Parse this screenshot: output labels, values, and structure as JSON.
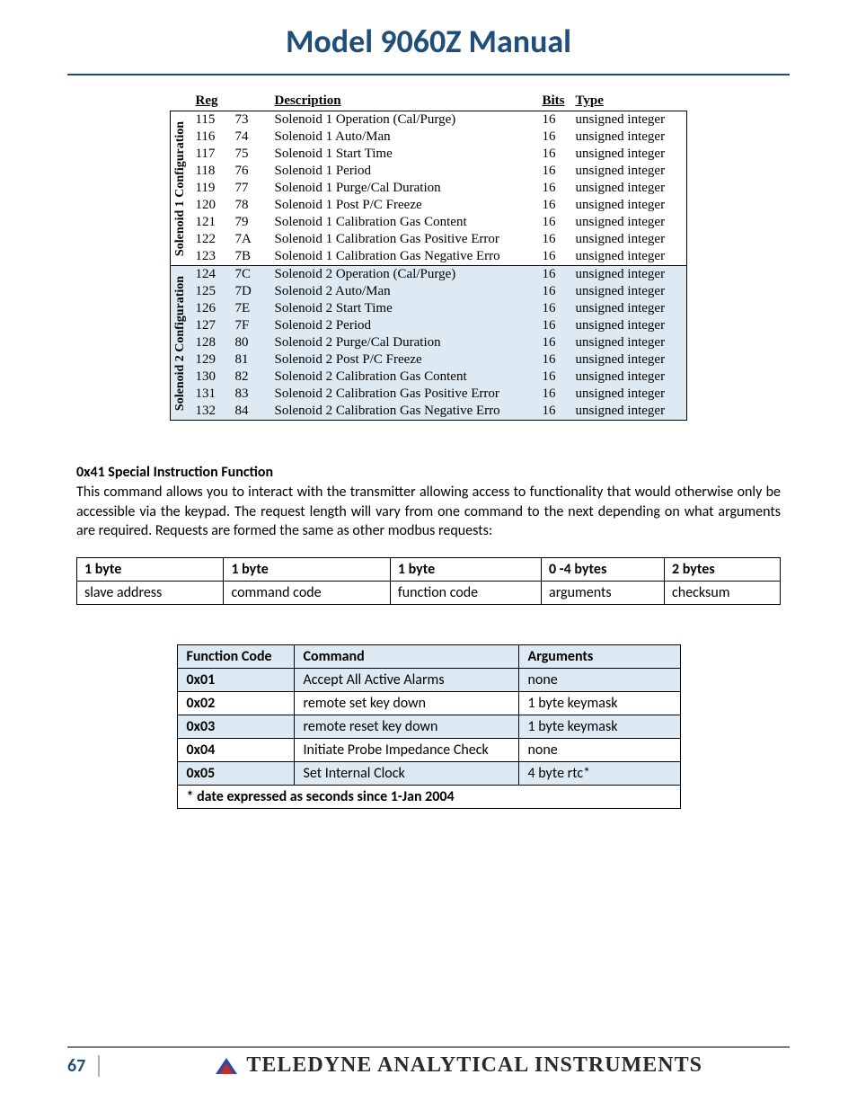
{
  "colors": {
    "title": "#1f4e79",
    "shade": "#deeaf3",
    "rule": "#808080",
    "text": "#000000"
  },
  "header": {
    "title": "Model 9060Z Manual"
  },
  "registers": {
    "columns": [
      "Reg",
      "",
      "Description",
      "Bits",
      "Type"
    ],
    "group1": {
      "label": "Solenoid 1 Configuration",
      "rows": [
        [
          "115",
          "73",
          "Solenoid 1 Operation (Cal/Purge)",
          "16",
          "unsigned integer"
        ],
        [
          "116",
          "74",
          "Solenoid 1 Auto/Man",
          "16",
          "unsigned integer"
        ],
        [
          "117",
          "75",
          "Solenoid 1 Start Time",
          "16",
          "unsigned integer"
        ],
        [
          "118",
          "76",
          "Solenoid 1 Period",
          "16",
          "unsigned integer"
        ],
        [
          "119",
          "77",
          "Solenoid 1 Purge/Cal Duration",
          "16",
          "unsigned integer"
        ],
        [
          "120",
          "78",
          "Solenoid 1 Post P/C Freeze",
          "16",
          "unsigned integer"
        ],
        [
          "121",
          "79",
          "Solenoid 1 Calibration Gas Content",
          "16",
          "unsigned integer"
        ],
        [
          "122",
          "7A",
          "Solenoid 1 Calibration Gas Positive Error",
          "16",
          "unsigned integer"
        ],
        [
          "123",
          "7B",
          "Solenoid 1 Calibration Gas Negative Erro",
          "16",
          "unsigned integer"
        ]
      ]
    },
    "group2": {
      "label": "Solenoid 2 Configuration",
      "rows": [
        [
          "124",
          "7C",
          "Solenoid 2 Operation (Cal/Purge)",
          "16",
          "unsigned integer"
        ],
        [
          "125",
          "7D",
          "Solenoid 2 Auto/Man",
          "16",
          "unsigned integer"
        ],
        [
          "126",
          "7E",
          "Solenoid 2 Start Time",
          "16",
          "unsigned integer"
        ],
        [
          "127",
          "7F",
          "Solenoid 2 Period",
          "16",
          "unsigned integer"
        ],
        [
          "128",
          "80",
          "Solenoid 2 Purge/Cal Duration",
          "16",
          "unsigned integer"
        ],
        [
          "129",
          "81",
          "Solenoid 2 Post P/C Freeze",
          "16",
          "unsigned integer"
        ],
        [
          "130",
          "82",
          "Solenoid 2 Calibration Gas Content",
          "16",
          "unsigned integer"
        ],
        [
          "131",
          "83",
          "Solenoid 2 Calibration Gas Positive Error",
          "16",
          "unsigned integer"
        ],
        [
          "132",
          "84",
          "Solenoid 2 Calibration Gas Negative Erro",
          "16",
          "unsigned integer"
        ]
      ]
    }
  },
  "section": {
    "heading": "0x41 Special Instruction Function",
    "body": "This command allows you to interact with the transmitter allowing access to functionality that would otherwise only be accessible via the keypad. The request length will vary from one command to the next depending on what arguments are required. Requests are formed the same as other modbus requests:"
  },
  "request_table": {
    "hdr": [
      "1 byte",
      "1 byte",
      "1 byte",
      "0 -4 bytes",
      "2 bytes"
    ],
    "row": [
      "slave address",
      "command code",
      "function code",
      "arguments",
      "checksum"
    ]
  },
  "function_table": {
    "columns": [
      "Function Code",
      "Command",
      "Arguments"
    ],
    "rows": [
      [
        "0x01",
        "Accept All Active Alarms",
        "none"
      ],
      [
        "0x02",
        "remote set key down",
        "1 byte keymask"
      ],
      [
        "0x03",
        "remote reset key down",
        "1 byte keymask"
      ],
      [
        "0x04",
        "Initiate Probe Impedance Check",
        "none"
      ],
      [
        "0x05",
        "Set Internal Clock",
        "4 byte rtc*"
      ]
    ],
    "footnote": "* date expressed as seconds since 1-Jan 2004"
  },
  "footer": {
    "page": "67",
    "brand": "TELEDYNE ANALYTICAL INSTRUMENTS"
  }
}
